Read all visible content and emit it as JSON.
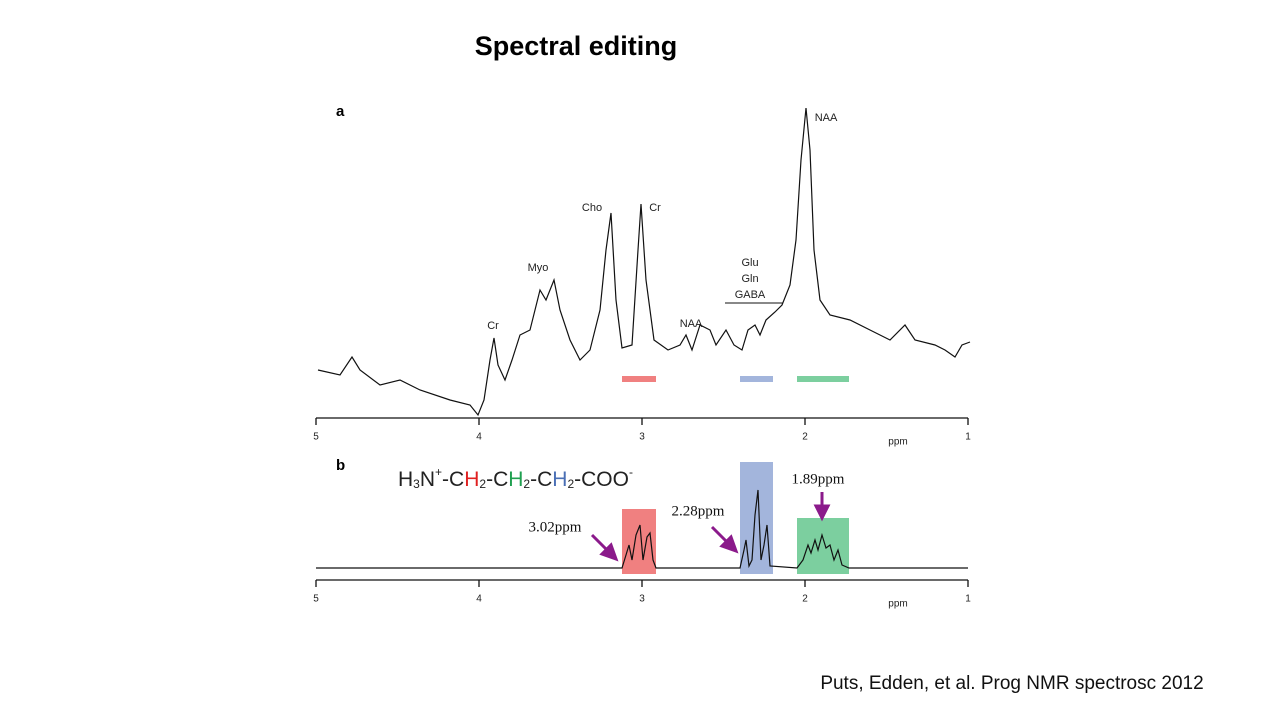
{
  "title": "Spectral editing",
  "panels": [
    {
      "label": "a",
      "xlim": [
        5,
        1
      ],
      "xticks": [
        5,
        4,
        3,
        2,
        1
      ],
      "x_label": "ppm",
      "peak_labels": [
        "Cr",
        "Myo",
        "Cho",
        "Cr",
        "NAA",
        "Glu",
        "Gln",
        "GABA",
        "NAA"
      ]
    },
    {
      "label": "b",
      "xlim": [
        5,
        1
      ],
      "xticks": [
        5,
        4,
        3,
        2,
        1
      ],
      "x_label": "ppm",
      "formula": [
        "H",
        "3",
        "N",
        "+",
        "-C",
        "H",
        "2",
        "-C",
        "H",
        "2",
        "-C",
        "H",
        "2",
        "-COO",
        "-"
      ],
      "annotations": [
        "3.02ppm",
        "2.28ppm",
        "1.89ppm"
      ]
    }
  ],
  "citation": "Puts, Edden, et al. Prog NMR spectrosc 2012"
}
